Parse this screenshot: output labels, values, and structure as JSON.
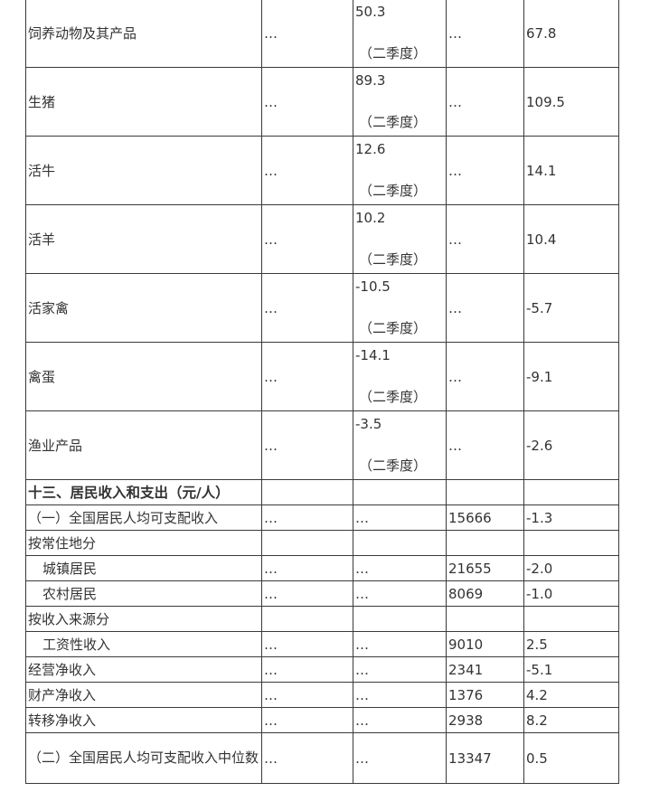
{
  "quarter_rows": [
    {
      "label": "饲养动物及其产品",
      "c2": "…",
      "c3": "50.3",
      "c3_note": "（二季度）",
      "c4": "…",
      "c5": "67.8"
    },
    {
      "label": "生猪",
      "c2": "…",
      "c3": "89.3",
      "c3_note": "（二季度）",
      "c4": "…",
      "c5": "109.5"
    },
    {
      "label": "活牛",
      "c2": "…",
      "c3": "12.6",
      "c3_note": "（二季度）",
      "c4": "…",
      "c5": "14.1"
    },
    {
      "label": "活羊",
      "c2": "…",
      "c3": "10.2",
      "c3_note": "（二季度）",
      "c4": "…",
      "c5": "10.4"
    },
    {
      "label": "活家禽",
      "c2": "…",
      "c3": "-10.5",
      "c3_note": "（二季度）",
      "c4": "…",
      "c5": "-5.7"
    },
    {
      "label": "禽蛋",
      "c2": "…",
      "c3": "-14.1",
      "c3_note": "（二季度）",
      "c4": "…",
      "c5": "-9.1"
    },
    {
      "label": "渔业产品",
      "c2": "…",
      "c3": "-3.5",
      "c3_note": "（二季度）",
      "c4": "…",
      "c5": "-2.6"
    }
  ],
  "section_title": "十三、居民收入和支出（元/人）",
  "income_rows": [
    {
      "label": "（一）全国居民人均可支配收入",
      "c2": "…",
      "c3": "…",
      "c4": "15666",
      "c5": "-1.3"
    },
    {
      "label": "按常住地分",
      "c2": "",
      "c3": "",
      "c4": "",
      "c5": ""
    },
    {
      "label": "城镇居民",
      "c2": "…",
      "c3": "…",
      "c4": "21655",
      "c5": "-2.0"
    },
    {
      "label": "农村居民",
      "c2": "…",
      "c3": "…",
      "c4": "8069",
      "c5": "-1.0"
    },
    {
      "label": "按收入来源分",
      "c2": "",
      "c3": "",
      "c4": "",
      "c5": ""
    },
    {
      "label": "工资性收入",
      "c2": "…",
      "c3": "…",
      "c4": "9010",
      "c5": "2.5"
    },
    {
      "label": "经营净收入",
      "c2": "…",
      "c3": "…",
      "c4": "2341",
      "c5": "-5.1"
    },
    {
      "label": "财产净收入",
      "c2": "…",
      "c3": "…",
      "c4": "1376",
      "c5": "4.2"
    },
    {
      "label": "转移净收入",
      "c2": "…",
      "c3": "…",
      "c4": "2938",
      "c5": "8.2"
    }
  ],
  "median_row": {
    "label": "（二）全国居民人均可支配收入中位数",
    "c2": "…",
    "c3": "…",
    "c4": "13347",
    "c5": "0.5"
  }
}
